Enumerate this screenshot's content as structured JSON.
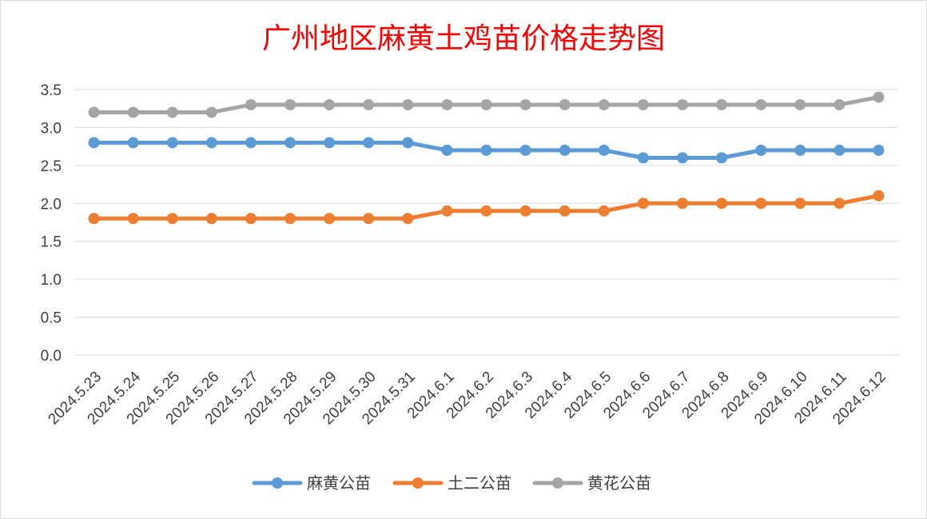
{
  "chart_data": {
    "type": "line",
    "title": "广州地区麻黄土鸡苗价格走势图",
    "title_color": "#ff0000",
    "xlabel": "",
    "ylabel": "",
    "ylim": [
      0,
      3.5
    ],
    "yticks": [
      "0.0",
      "0.5",
      "1.0",
      "1.5",
      "2.0",
      "2.5",
      "3.0",
      "3.5"
    ],
    "grid": true,
    "legend_position": "bottom",
    "categories": [
      "2024.5.23",
      "2024.5.24",
      "2024.5.25",
      "2024.5.26",
      "2024.5.27",
      "2024.5.28",
      "2024.5.29",
      "2024.5.30",
      "2024.5.31",
      "2024.6.1",
      "2024.6.2",
      "2024.6.3",
      "2024.6.4",
      "2024.6.5",
      "2024.6.6",
      "2024.6.7",
      "2024.6.8",
      "2024.6.9",
      "2024.6.10",
      "2024.6.11",
      "2024.6.12"
    ],
    "series": [
      {
        "name": "麻黄公苗",
        "color": "#5b9bd5",
        "values": [
          2.8,
          2.8,
          2.8,
          2.8,
          2.8,
          2.8,
          2.8,
          2.8,
          2.8,
          2.7,
          2.7,
          2.7,
          2.7,
          2.7,
          2.6,
          2.6,
          2.6,
          2.7,
          2.7,
          2.7,
          2.7
        ]
      },
      {
        "name": "土二公苗",
        "color": "#ed7d31",
        "values": [
          1.8,
          1.8,
          1.8,
          1.8,
          1.8,
          1.8,
          1.8,
          1.8,
          1.8,
          1.9,
          1.9,
          1.9,
          1.9,
          1.9,
          2.0,
          2.0,
          2.0,
          2.0,
          2.0,
          2.0,
          2.1
        ]
      },
      {
        "name": "黄花公苗",
        "color": "#a5a5a5",
        "values": [
          3.2,
          3.2,
          3.2,
          3.2,
          3.3,
          3.3,
          3.3,
          3.3,
          3.3,
          3.3,
          3.3,
          3.3,
          3.3,
          3.3,
          3.3,
          3.3,
          3.3,
          3.3,
          3.3,
          3.3,
          3.4
        ]
      }
    ]
  }
}
